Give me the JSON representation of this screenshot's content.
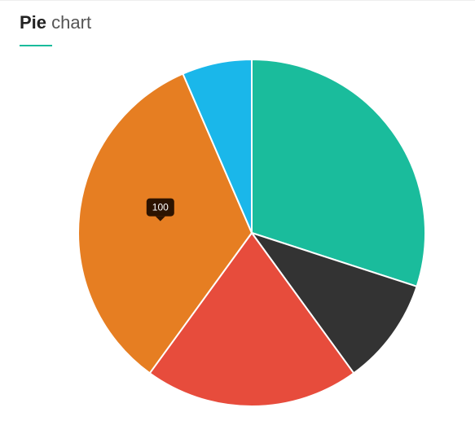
{
  "header": {
    "title_bold": "Pie",
    "title_light": "chart",
    "accent_color": "#1abc9c"
  },
  "chart_data": {
    "type": "pie",
    "title": "Pie chart",
    "slices": [
      {
        "value": 30,
        "color": "#1abc9c"
      },
      {
        "value": 10,
        "color": "#333333"
      },
      {
        "value": 20,
        "color": "#e74c3c"
      },
      {
        "value": 33.5,
        "color": "#e67e22"
      },
      {
        "value": 6.5,
        "color": "#1ab7ea"
      }
    ],
    "start": "top",
    "direction": "clockwise",
    "tooltip": {
      "text": "100",
      "slice_index": 3
    }
  }
}
